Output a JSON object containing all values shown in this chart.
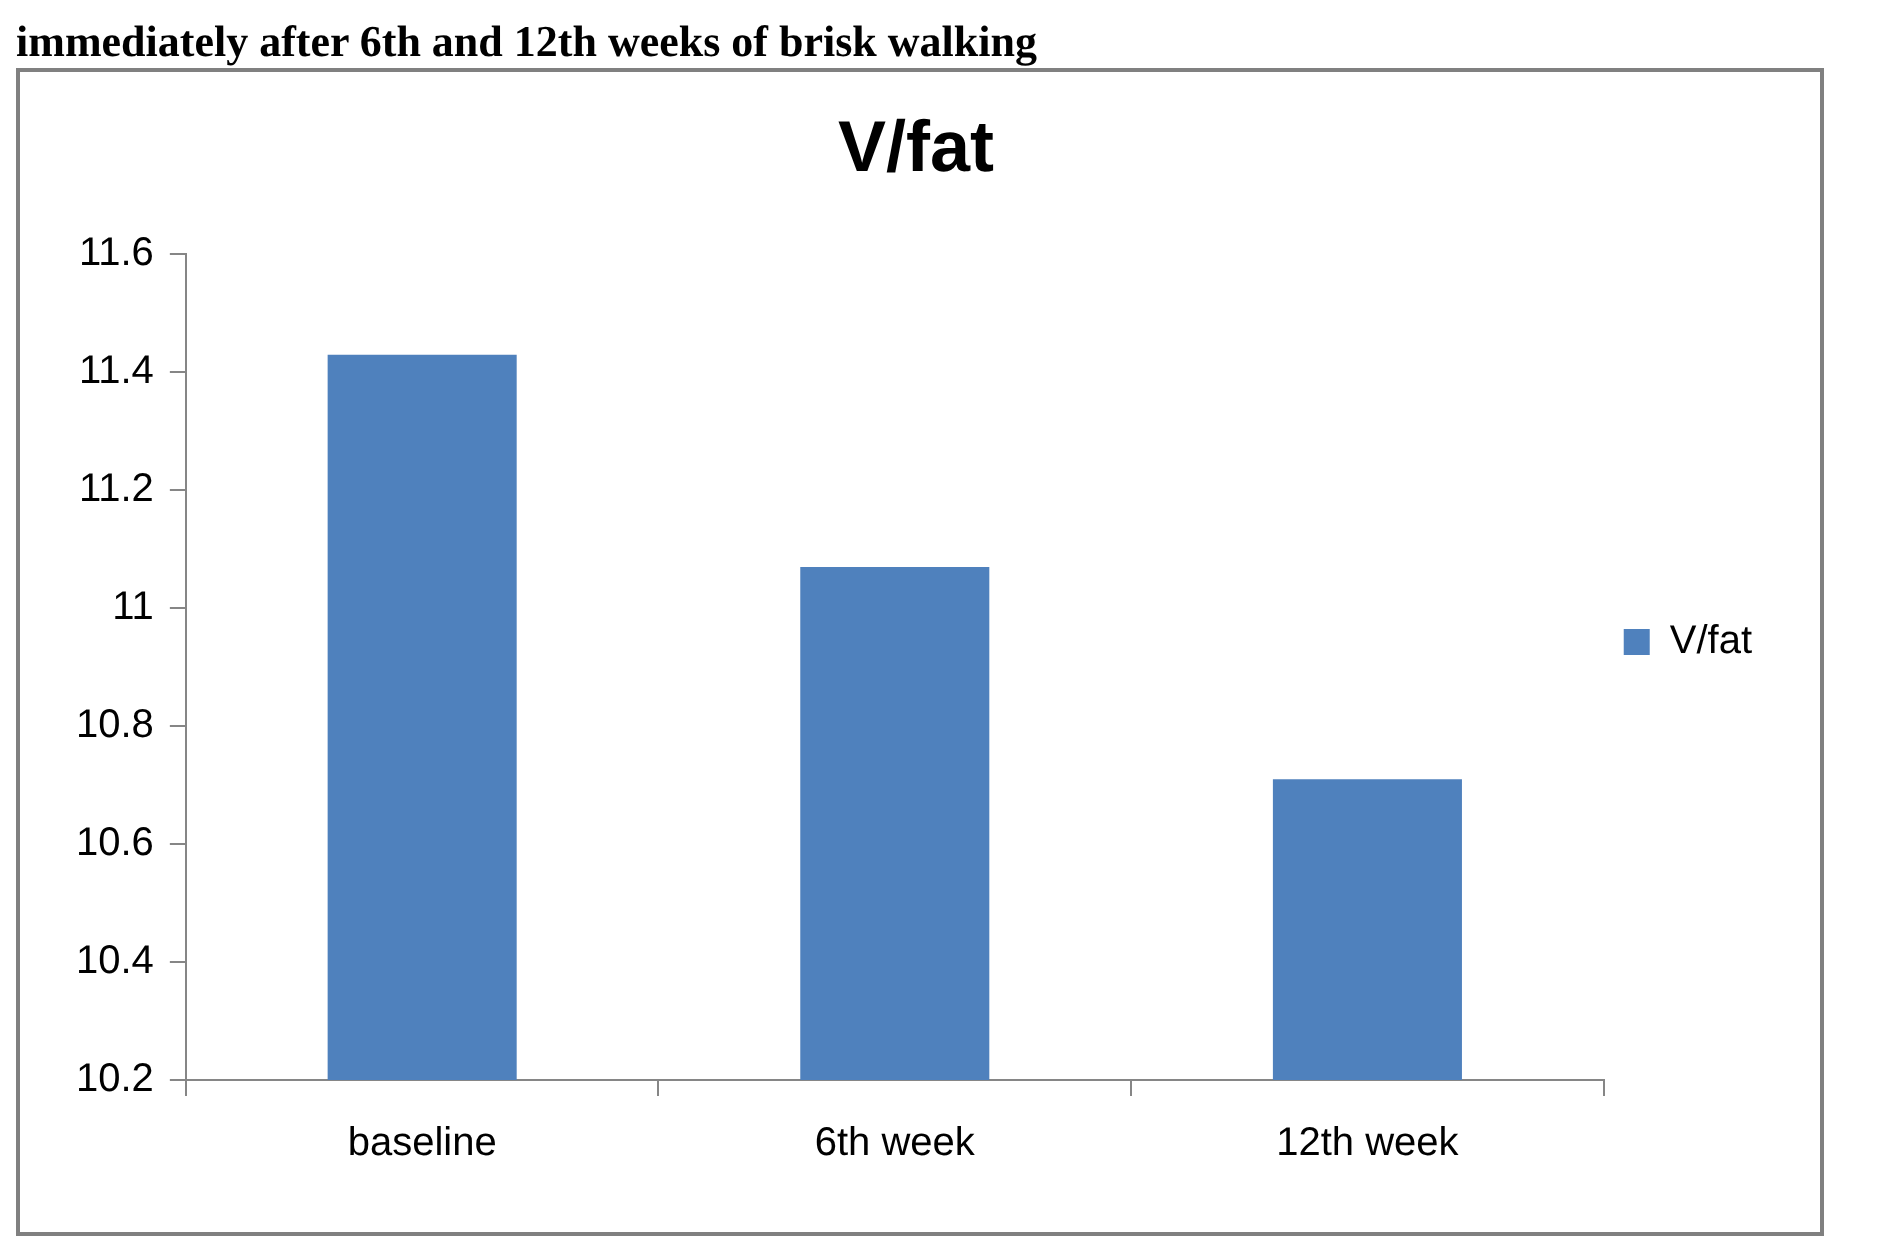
{
  "chart_data": {
    "type": "bar",
    "title": "V/fat",
    "annotations": [
      "immediately after 6th and 12th weeks of brisk walking"
    ],
    "categories": [
      "baseline",
      "6th week",
      "12th week"
    ],
    "series": [
      {
        "name": "V/fat",
        "color": "#4f81bd",
        "values": [
          11.43,
          11.07,
          10.71
        ]
      }
    ],
    "ylim": [
      10.2,
      11.6
    ],
    "yticks": [
      10.2,
      10.4,
      10.6,
      10.8,
      11,
      11.2,
      11.4,
      11.6
    ],
    "grid": false,
    "legend": "right"
  }
}
